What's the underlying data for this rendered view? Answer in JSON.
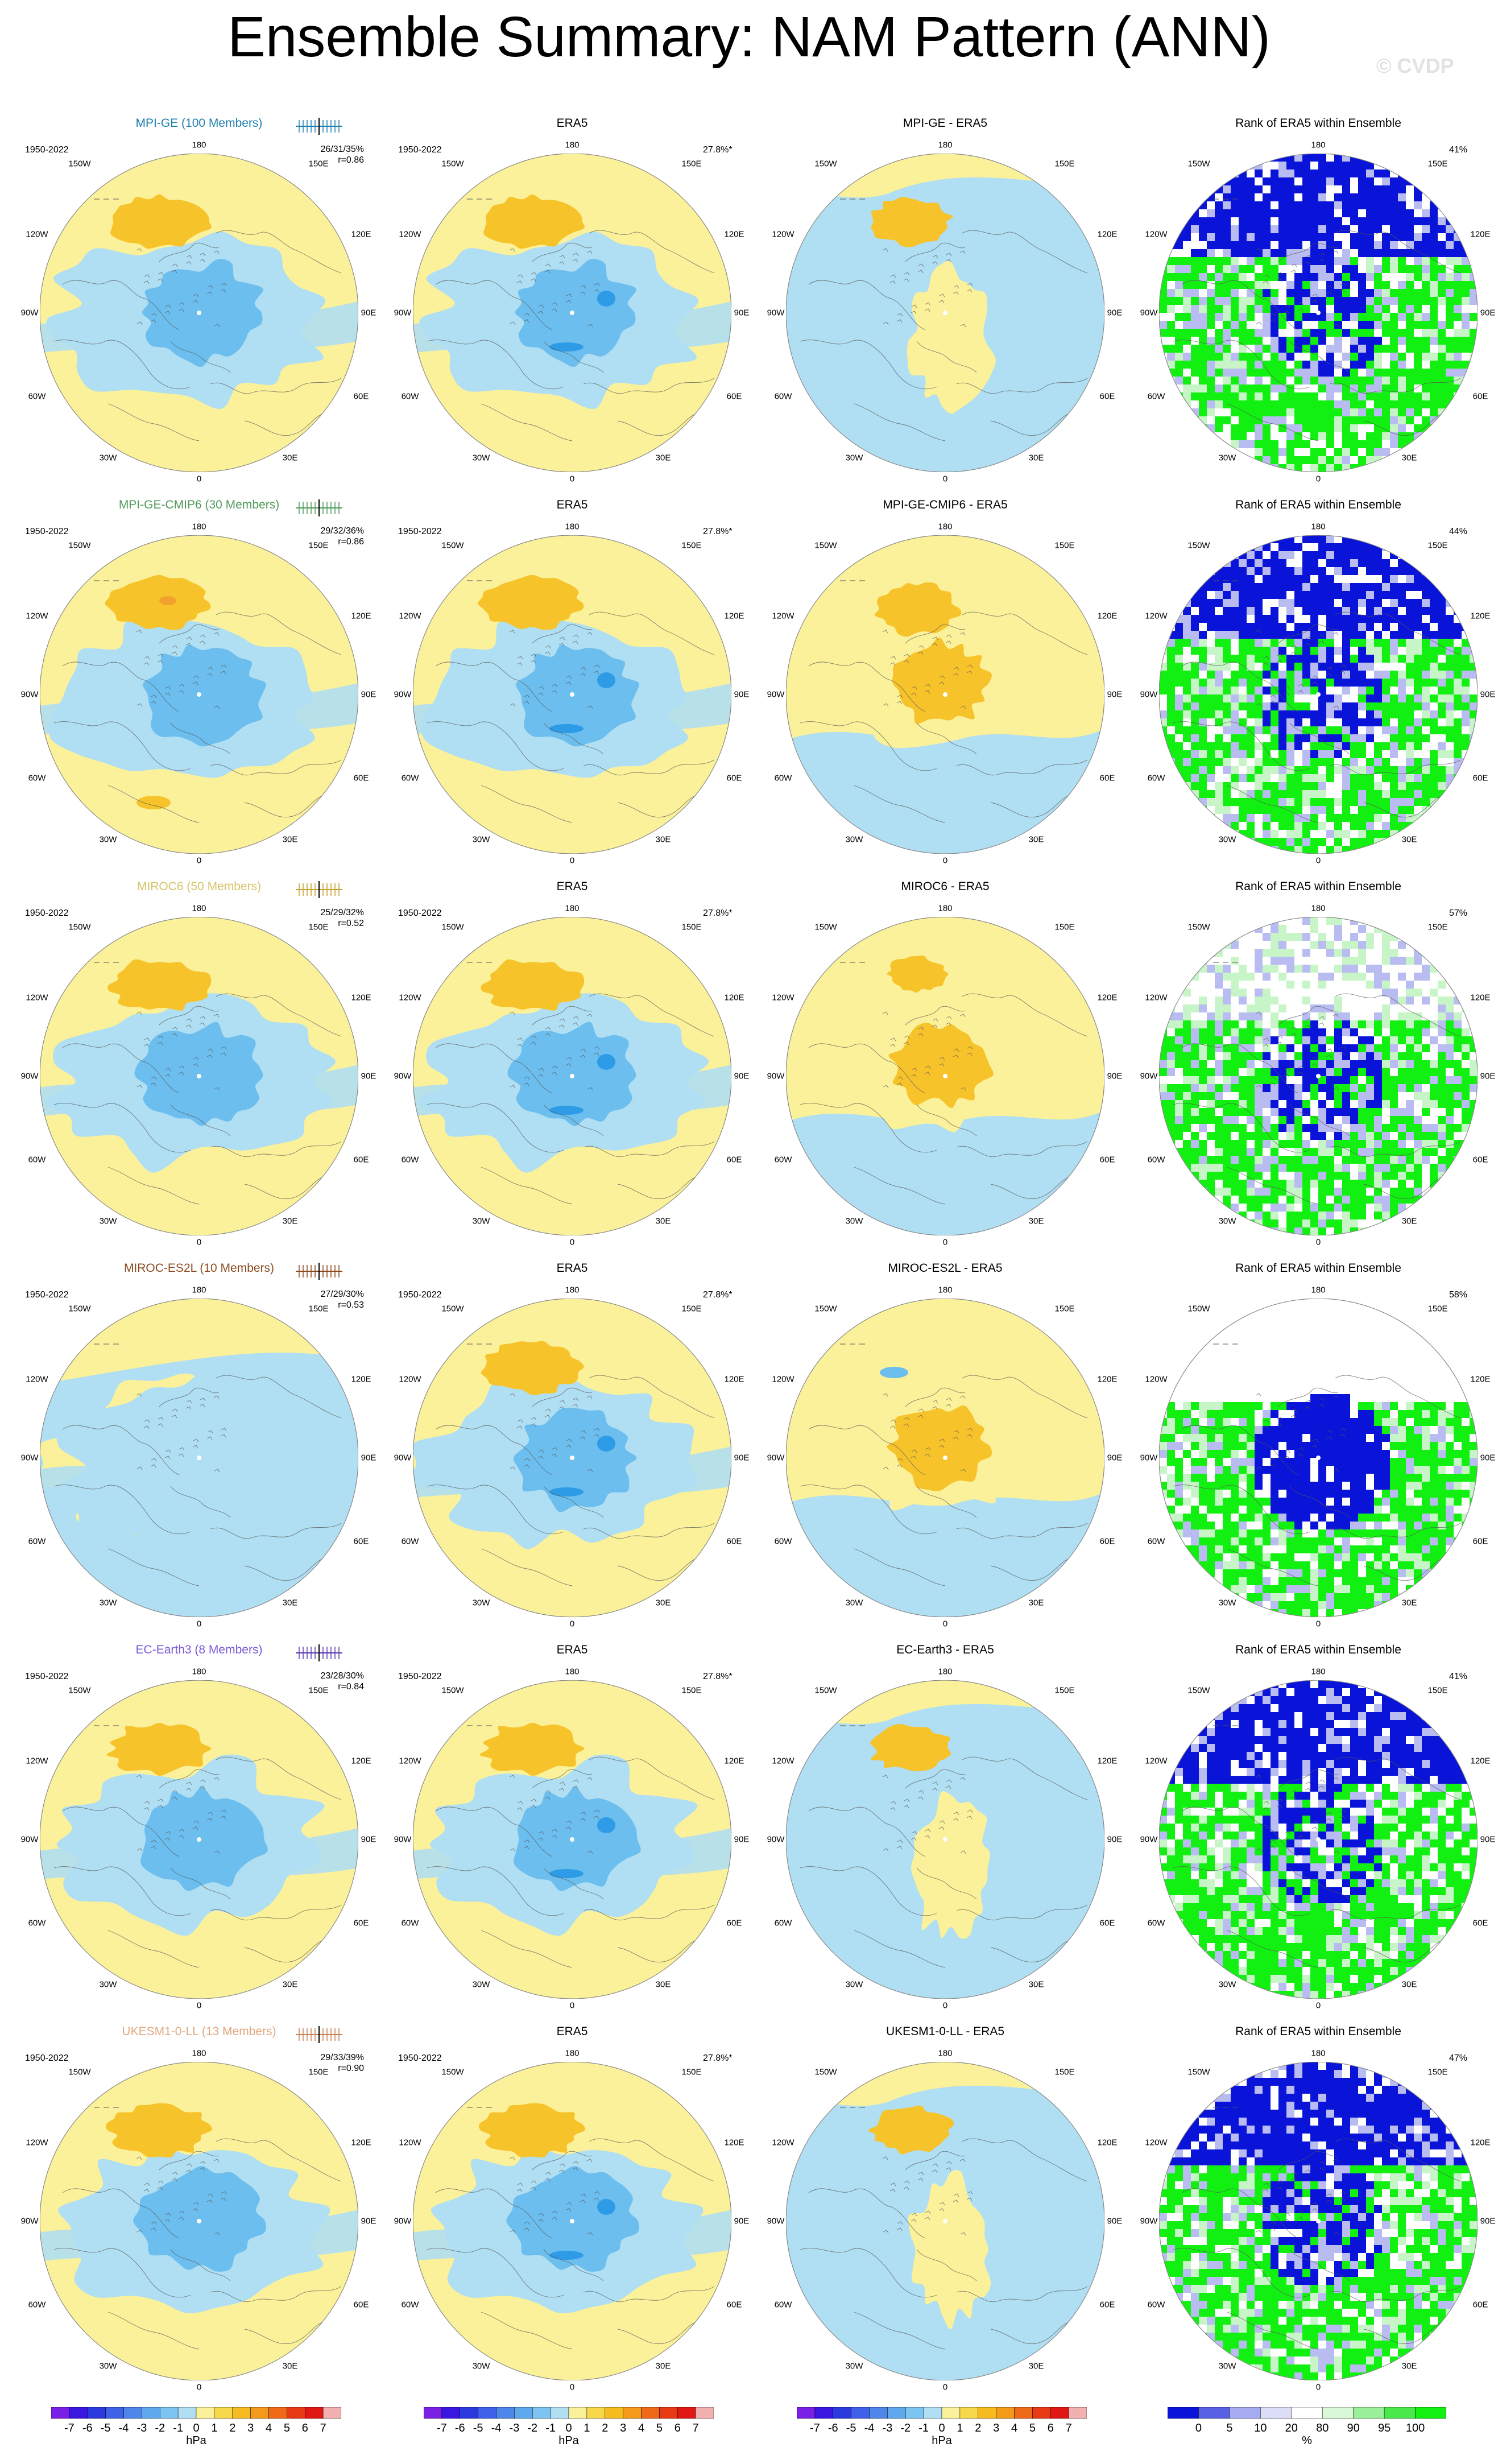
{
  "page": {
    "title": "Ensemble Summary: NAM Pattern (ANN)",
    "watermark": "© CVDP"
  },
  "colors": {
    "pos_light": "#fbf19a",
    "pos_mid": "#f7c32b",
    "pos_dark": "#f3a12d",
    "neg_light": "#b0def2",
    "neg_mid": "#6bbeee",
    "neg_dark": "#2e9be6",
    "rank_blue": "#0a14d8",
    "rank_lightblue": "#b8bcf0",
    "rank_green": "#12f012",
    "rank_lightgreen": "#c8f5c8",
    "coast": "#555555"
  },
  "lon_labels": [
    "180",
    "150W",
    "150E",
    "120W",
    "120E",
    "90W",
    "90E",
    "60W",
    "60E",
    "30W",
    "30E",
    "0"
  ],
  "rows": [
    {
      "model": {
        "title": "MPI-GE (100 Members)",
        "title_color": "#1f7fae",
        "years": "1950-2022",
        "stats_pct": "26/31/35%",
        "stats_r": "r=0.86",
        "whisker_color": "#1f7fae"
      },
      "obs": {
        "title": "ERA5",
        "years": "1950-2022",
        "pct": "27.8%*"
      },
      "diff": {
        "title": "MPI-GE - ERA5"
      },
      "rank": {
        "title": "Rank of ERA5 within Ensemble",
        "pct": "41%"
      }
    },
    {
      "model": {
        "title": "MPI-GE-CMIP6 (30 Members)",
        "title_color": "#4e9a5a",
        "years": "1950-2022",
        "stats_pct": "29/32/36%",
        "stats_r": "r=0.86",
        "whisker_color": "#4e9a5a"
      },
      "obs": {
        "title": "ERA5",
        "years": "1950-2022",
        "pct": "27.8%*"
      },
      "diff": {
        "title": "MPI-GE-CMIP6 - ERA5"
      },
      "rank": {
        "title": "Rank of ERA5 within Ensemble",
        "pct": "44%"
      }
    },
    {
      "model": {
        "title": "MIROC6 (50 Members)",
        "title_color": "#d8c46a",
        "years": "1950-2022",
        "stats_pct": "25/29/32%",
        "stats_r": "r=0.52",
        "whisker_color": "#c4a12a"
      },
      "obs": {
        "title": "ERA5",
        "years": "1950-2022",
        "pct": "27.8%*"
      },
      "diff": {
        "title": "MIROC6 - ERA5"
      },
      "rank": {
        "title": "Rank of ERA5 within Ensemble",
        "pct": "57%"
      }
    },
    {
      "model": {
        "title": "MIROC-ES2L (10 Members)",
        "title_color": "#8a4a1e",
        "years": "1950-2022",
        "stats_pct": "27/29/30%",
        "stats_r": "r=0.53",
        "whisker_color": "#8a4a1e"
      },
      "obs": {
        "title": "ERA5",
        "years": "1950-2022",
        "pct": "27.8%*"
      },
      "diff": {
        "title": "MIROC-ES2L - ERA5"
      },
      "rank": {
        "title": "Rank of ERA5 within Ensemble",
        "pct": "58%"
      }
    },
    {
      "model": {
        "title": "EC-Earth3 (8 Members)",
        "title_color": "#7a5ad6",
        "years": "1950-2022",
        "stats_pct": "23/28/30%",
        "stats_r": "r=0.84",
        "whisker_color": "#5a3ab0"
      },
      "obs": {
        "title": "ERA5",
        "years": "1950-2022",
        "pct": "27.8%*"
      },
      "diff": {
        "title": "EC-Earth3 - ERA5"
      },
      "rank": {
        "title": "Rank of ERA5 within Ensemble",
        "pct": "41%"
      }
    },
    {
      "model": {
        "title": "UKESM1-0-LL (13 Members)",
        "title_color": "#e0a880",
        "years": "1950-2022",
        "stats_pct": "29/33/39%",
        "stats_r": "r=0.90",
        "whisker_color": "#c88050"
      },
      "obs": {
        "title": "ERA5",
        "years": "1950-2022",
        "pct": "27.8%*"
      },
      "diff": {
        "title": "UKESM1-0-LL - ERA5"
      },
      "rank": {
        "title": "Rank of ERA5 within Ensemble",
        "pct": "47%"
      }
    }
  ],
  "colorbars": {
    "hpa": {
      "ticks": [
        "-7",
        "-6",
        "-5",
        "-4",
        "-3",
        "-2",
        "-1",
        "0",
        "1",
        "2",
        "3",
        "4",
        "5",
        "6",
        "7"
      ],
      "unit": "hPa",
      "colors": [
        "#7a1fe6",
        "#3a16e0",
        "#2a3ade",
        "#3f60e8",
        "#4f86ea",
        "#5fa8ee",
        "#7cc4f2",
        "#b0def2",
        "#fbf19a",
        "#f7d84a",
        "#f6bb1e",
        "#f39a1b",
        "#ef6a18",
        "#e83a15",
        "#e01712",
        "#f2b0b0"
      ]
    },
    "rank": {
      "ticks": [
        "0",
        "5",
        "10",
        "20",
        "80",
        "90",
        "95",
        "100"
      ],
      "unit": "%",
      "colors": [
        "#0a14d8",
        "#5860e6",
        "#a6aaf0",
        "#dcdef8",
        "#ffffff",
        "#d8f8d8",
        "#9af09a",
        "#4ae84a",
        "#12f012"
      ]
    }
  }
}
